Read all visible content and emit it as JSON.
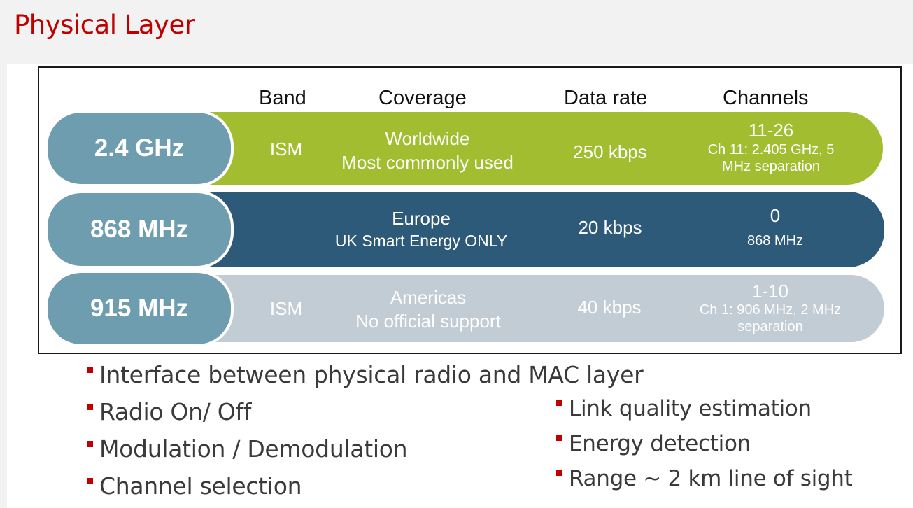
{
  "slide": {
    "title": "Physical Layer"
  },
  "table": {
    "headers": {
      "band": "Band",
      "coverage": "Coverage",
      "data_rate": "Data rate",
      "channels": "Channels"
    },
    "rows": [
      {
        "frequency": "2.4 GHz",
        "band": "ISM",
        "coverage_line1": "Worldwide",
        "coverage_line2": "Most commonly used",
        "data_rate": "250 kbps",
        "channels_main": "11-26",
        "channels_detail1": "Ch 11: 2.405 GHz, 5",
        "channels_detail2": "MHz separation",
        "bar_color": "#a3bd31",
        "text_color": "#ffffff"
      },
      {
        "frequency": "868 MHz",
        "band": "",
        "coverage_line1": "Europe",
        "coverage_line2": "UK Smart Energy ONLY",
        "data_rate": "20 kbps",
        "channels_main": "0",
        "channels_detail1": "868 MHz",
        "channels_detail2": "",
        "bar_color": "#2e5a7a",
        "text_color": "#ffffff"
      },
      {
        "frequency": "915 MHz",
        "band": "ISM",
        "coverage_line1": "Americas",
        "coverage_line2": "No official support",
        "data_rate": "40 kbps",
        "channels_main": "1-10",
        "channels_detail1": "Ch 1: 906 MHz, 2 MHz",
        "channels_detail2": "separation",
        "bar_color": "#c2ccd4",
        "text_color": "#ffffff"
      }
    ]
  },
  "bullets": {
    "left": [
      "Interface between physical radio and MAC layer",
      "Radio On/ Off",
      "Modulation / Demodulation",
      "Channel selection"
    ],
    "right": [
      "Link quality estimation",
      "Energy detection",
      "Range ~ 2 km line of sight"
    ]
  }
}
